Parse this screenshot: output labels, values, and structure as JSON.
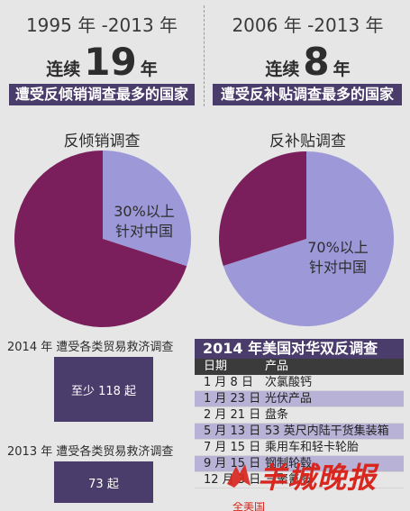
{
  "left_header": {
    "period": "1995 年 -2013 年",
    "streak_prefix": "连续",
    "streak_number": "19",
    "streak_suffix": "年",
    "banner": "遭受反倾销调查最多的国家"
  },
  "right_header": {
    "period": "2006 年 -2013 年",
    "streak_prefix": "连续",
    "streak_number": "8",
    "streak_suffix": "年",
    "banner": "遭受反补贴调查最多的国家"
  },
  "chart_data": [
    {
      "type": "pie",
      "title": "反倾销调查",
      "slices": [
        {
          "label": "30%以上 针对中国",
          "value": 30,
          "color": "#9d98d8"
        },
        {
          "label": "",
          "value": 70,
          "color": "#7b1f5c"
        }
      ],
      "annotation": [
        "30%以上",
        "针对中国"
      ]
    },
    {
      "type": "pie",
      "title": "反补贴调查",
      "slices": [
        {
          "label": "70%以上 针对中国",
          "value": 70,
          "color": "#9d98d8"
        },
        {
          "label": "",
          "value": 30,
          "color": "#7b1f5c"
        }
      ],
      "annotation": [
        "70%以上",
        "针对中国"
      ]
    },
    {
      "type": "table",
      "title": "2014 年美国对华双反调查",
      "columns": [
        "日期",
        "产品"
      ],
      "rows": [
        [
          "1 月 8 日",
          "次氯酸钙"
        ],
        [
          "1 月 23 日",
          "光伏产品"
        ],
        [
          "2 月 21 日",
          "盘条"
        ],
        [
          "5 月 13 日",
          "53 英尺内陆干货集装箱"
        ],
        [
          "7 月 15 日",
          "乘用车和轻卡轮胎"
        ],
        [
          "9 月 15 日",
          "钢制轮毂"
        ],
        [
          "12 月 3 日",
          "三聚氰胺"
        ]
      ],
      "shaded_rows": [
        1,
        3,
        5
      ]
    }
  ],
  "stats": [
    {
      "year_line": "2014 年  遭受各类贸易救济调查",
      "count": "至少 118 起"
    },
    {
      "year_line": "2013 年  遭受各类贸易救济调查",
      "count": "73 起"
    }
  ],
  "watermark": {
    "text": "羊城晚报",
    "partial_caption": "全美国"
  },
  "colors": {
    "accent": "#4b3d6b",
    "pie_major": "#7b1f5c",
    "pie_minor": "#9d98d8",
    "watermark": "#d7271f"
  }
}
